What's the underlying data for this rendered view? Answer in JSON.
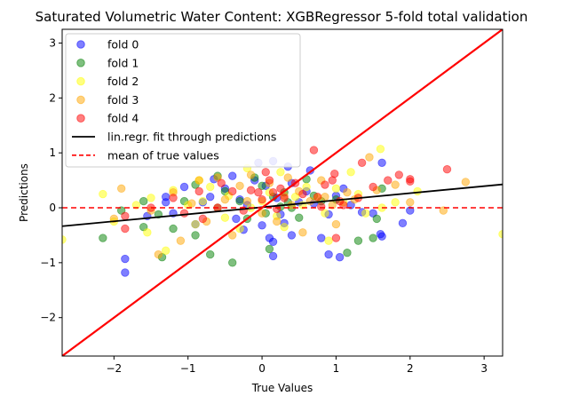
{
  "chart_data": {
    "type": "scatter",
    "title": "Saturated Volumetric Water Content: XGBRegressor 5-fold total validation",
    "xlabel": "True Values",
    "ylabel": "Predictions",
    "xlim": [
      -2.7,
      3.25
    ],
    "ylim": [
      -2.7,
      3.25
    ],
    "xticks": [
      -2,
      -1,
      0,
      1,
      2,
      3
    ],
    "yticks": [
      -2,
      -1,
      0,
      1,
      2,
      3
    ],
    "grid": false,
    "legend_position": "top-left",
    "series": [
      {
        "name": "fold 0",
        "color": "#0000ff",
        "points": [
          [
            -1.85,
            -0.93
          ],
          [
            -1.85,
            -1.18
          ],
          [
            -1.55,
            -0.15
          ],
          [
            -1.3,
            0.2
          ],
          [
            -1.3,
            0.1
          ],
          [
            -1.2,
            -0.1
          ],
          [
            -1.05,
            0.38
          ],
          [
            -0.9,
            -0.3
          ],
          [
            -0.8,
            0.1
          ],
          [
            -0.7,
            0.2
          ],
          [
            -0.65,
            0.52
          ],
          [
            -0.6,
            0.0
          ],
          [
            -0.5,
            0.35
          ],
          [
            -0.4,
            0.58
          ],
          [
            -0.35,
            -0.2
          ],
          [
            -0.3,
            0.15
          ],
          [
            -0.25,
            -0.4
          ],
          [
            -0.2,
            0.05
          ],
          [
            -0.1,
            0.5
          ],
          [
            -0.05,
            0.82
          ],
          [
            0.0,
            -0.32
          ],
          [
            0.05,
            0.4
          ],
          [
            0.1,
            -0.55
          ],
          [
            0.15,
            -0.88
          ],
          [
            0.15,
            -0.62
          ],
          [
            0.15,
            0.85
          ],
          [
            0.2,
            0.18
          ],
          [
            0.25,
            -0.12
          ],
          [
            0.3,
            -0.28
          ],
          [
            0.35,
            0.75
          ],
          [
            0.4,
            -0.5
          ],
          [
            0.4,
            0.45
          ],
          [
            0.5,
            0.1
          ],
          [
            0.6,
            0.3
          ],
          [
            0.65,
            0.68
          ],
          [
            0.7,
            0.08
          ],
          [
            0.8,
            -0.55
          ],
          [
            0.9,
            -0.12
          ],
          [
            0.9,
            -0.85
          ],
          [
            1.0,
            0.22
          ],
          [
            1.05,
            -0.9
          ],
          [
            1.1,
            0.35
          ],
          [
            1.2,
            0.05
          ],
          [
            1.35,
            -0.08
          ],
          [
            1.5,
            -0.1
          ],
          [
            1.6,
            -0.48
          ],
          [
            1.62,
            -0.52
          ],
          [
            1.62,
            0.82
          ],
          [
            1.9,
            -0.28
          ],
          [
            2.0,
            -0.05
          ]
        ]
      },
      {
        "name": "fold 1",
        "color": "#008000",
        "points": [
          [
            -2.15,
            -0.55
          ],
          [
            -1.9,
            -0.05
          ],
          [
            -1.6,
            0.12
          ],
          [
            -1.6,
            -0.35
          ],
          [
            -1.4,
            -0.12
          ],
          [
            -1.35,
            -0.9
          ],
          [
            -1.2,
            -0.38
          ],
          [
            -1.05,
            0.12
          ],
          [
            -0.9,
            0.42
          ],
          [
            -0.9,
            -0.5
          ],
          [
            -0.7,
            -0.85
          ],
          [
            -0.6,
            0.58
          ],
          [
            -0.5,
            0.3
          ],
          [
            -0.4,
            -1.0
          ],
          [
            -0.3,
            0.12
          ],
          [
            -0.2,
            -0.2
          ],
          [
            -0.1,
            0.55
          ],
          [
            0.0,
            0.4
          ],
          [
            0.05,
            -0.1
          ],
          [
            0.1,
            -0.75
          ],
          [
            0.15,
            0.2
          ],
          [
            0.25,
            0.02
          ],
          [
            0.3,
            0.28
          ],
          [
            0.35,
            0.1
          ],
          [
            0.4,
            0.0
          ],
          [
            0.5,
            -0.18
          ],
          [
            0.6,
            0.52
          ],
          [
            0.7,
            0.22
          ],
          [
            0.8,
            0.12
          ],
          [
            1.0,
            0.15
          ],
          [
            1.15,
            -0.82
          ],
          [
            1.3,
            -0.6
          ],
          [
            1.5,
            -0.55
          ],
          [
            1.55,
            -0.2
          ],
          [
            1.62,
            0.35
          ]
        ]
      },
      {
        "name": "fold 2",
        "color": "#ffff00",
        "points": [
          [
            -2.7,
            -0.58
          ],
          [
            -2.15,
            0.25
          ],
          [
            -2.0,
            -0.25
          ],
          [
            -1.7,
            0.05
          ],
          [
            -1.55,
            -0.45
          ],
          [
            -1.5,
            0.18
          ],
          [
            -1.3,
            -0.78
          ],
          [
            -1.2,
            0.32
          ],
          [
            -1.0,
            0.05
          ],
          [
            -0.9,
            -0.3
          ],
          [
            -0.85,
            0.5
          ],
          [
            -0.8,
            0.12
          ],
          [
            -0.7,
            0.38
          ],
          [
            -0.6,
            0.0
          ],
          [
            -0.5,
            -0.18
          ],
          [
            -0.45,
            0.22
          ],
          [
            -0.3,
            -0.38
          ],
          [
            -0.2,
            0.72
          ],
          [
            -0.15,
            0.0
          ],
          [
            0.0,
            0.12
          ],
          [
            0.1,
            0.28
          ],
          [
            0.2,
            -0.15
          ],
          [
            0.25,
            0.65
          ],
          [
            0.3,
            -0.35
          ],
          [
            0.45,
            0.2
          ],
          [
            0.55,
            0.05
          ],
          [
            0.6,
            0.38
          ],
          [
            0.75,
            0.18
          ],
          [
            0.85,
            -0.1
          ],
          [
            0.9,
            -0.6
          ],
          [
            1.0,
            0.35
          ],
          [
            1.1,
            0.1
          ],
          [
            1.2,
            0.65
          ],
          [
            1.3,
            0.25
          ],
          [
            1.4,
            -0.1
          ],
          [
            1.6,
            1.07
          ],
          [
            1.62,
            0.0
          ],
          [
            1.8,
            0.1
          ],
          [
            2.1,
            0.3
          ],
          [
            3.25,
            -0.48
          ]
        ]
      },
      {
        "name": "fold 3",
        "color": "#ffa500",
        "points": [
          [
            -2.0,
            -0.2
          ],
          [
            -1.9,
            0.35
          ],
          [
            -1.5,
            -0.05
          ],
          [
            -1.4,
            -0.85
          ],
          [
            -1.2,
            0.28
          ],
          [
            -1.1,
            -0.6
          ],
          [
            -0.95,
            0.08
          ],
          [
            -0.85,
            0.5
          ],
          [
            -0.75,
            -0.25
          ],
          [
            -0.6,
            0.55
          ],
          [
            -0.5,
            0.15
          ],
          [
            -0.4,
            -0.5
          ],
          [
            -0.3,
            0.4
          ],
          [
            -0.2,
            0.12
          ],
          [
            -0.15,
            0.6
          ],
          [
            0.0,
            -0.1
          ],
          [
            0.1,
            0.45
          ],
          [
            0.2,
            -0.25
          ],
          [
            0.3,
            0.22
          ],
          [
            0.35,
            0.55
          ],
          [
            0.4,
            0.05
          ],
          [
            0.5,
            0.3
          ],
          [
            0.55,
            -0.45
          ],
          [
            0.65,
            0.12
          ],
          [
            0.8,
            0.5
          ],
          [
            0.85,
            0.2
          ],
          [
            0.95,
            0.05
          ],
          [
            1.0,
            -0.3
          ],
          [
            1.15,
            0.28
          ],
          [
            1.25,
            0.15
          ],
          [
            1.45,
            0.92
          ],
          [
            1.55,
            0.32
          ],
          [
            1.8,
            0.42
          ],
          [
            2.0,
            0.1
          ],
          [
            2.45,
            -0.05
          ],
          [
            2.75,
            0.47
          ]
        ]
      },
      {
        "name": "fold 4",
        "color": "#ff0000",
        "points": [
          [
            -1.85,
            -0.15
          ],
          [
            -1.85,
            -0.38
          ],
          [
            -1.5,
            0.0
          ],
          [
            -1.2,
            0.18
          ],
          [
            -1.05,
            -0.1
          ],
          [
            -0.85,
            0.3
          ],
          [
            -0.8,
            -0.2
          ],
          [
            -0.6,
            0.0
          ],
          [
            -0.55,
            0.45
          ],
          [
            -0.4,
            0.3
          ],
          [
            -0.25,
            -0.05
          ],
          [
            -0.15,
            0.32
          ],
          [
            -0.05,
            0.28
          ],
          [
            0.0,
            0.15
          ],
          [
            0.05,
            0.65
          ],
          [
            0.1,
            0.5
          ],
          [
            0.15,
            0.28
          ],
          [
            0.2,
            -0.02
          ],
          [
            0.25,
            0.35
          ],
          [
            0.3,
            0.18
          ],
          [
            0.45,
            0.45
          ],
          [
            0.55,
            0.25
          ],
          [
            0.7,
            1.05
          ],
          [
            0.75,
            0.2
          ],
          [
            0.8,
            0.02
          ],
          [
            0.85,
            0.42
          ],
          [
            0.95,
            0.5
          ],
          [
            0.98,
            0.62
          ],
          [
            1.0,
            -0.55
          ],
          [
            1.05,
            0.12
          ],
          [
            1.1,
            0.05
          ],
          [
            1.3,
            0.18
          ],
          [
            1.35,
            0.82
          ],
          [
            1.5,
            0.38
          ],
          [
            1.7,
            0.5
          ],
          [
            1.85,
            0.6
          ],
          [
            2.0,
            0.48
          ],
          [
            2.0,
            0.52
          ],
          [
            2.5,
            0.7
          ]
        ]
      }
    ],
    "fit_line": {
      "name": "lin.regr. fit through predictions",
      "color": "#000000",
      "slope": 0.128,
      "intercept": 0.01
    },
    "mean_line": {
      "name": "mean of true values",
      "color": "#ff0000",
      "y": 0.0
    },
    "identity_line": {
      "color": "#ff0000"
    }
  }
}
